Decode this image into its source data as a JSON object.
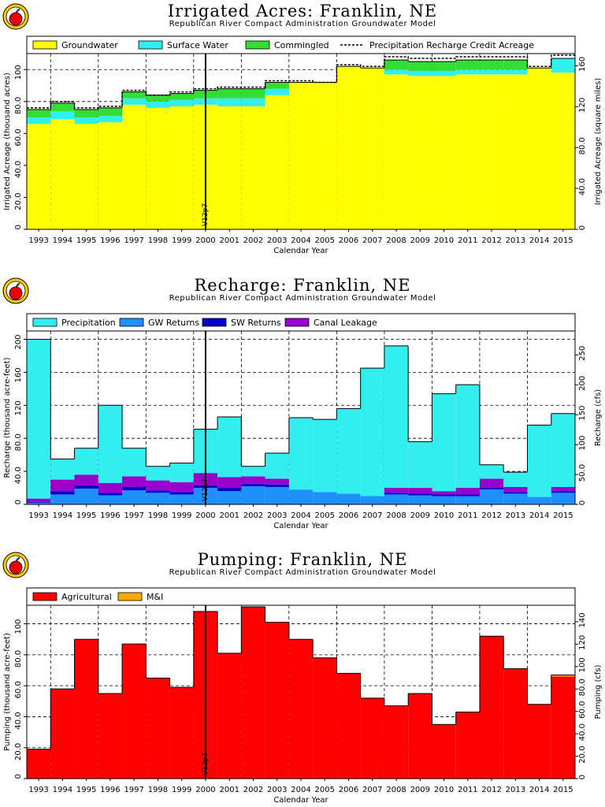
{
  "charts": [
    {
      "title": "Irrigated  Acres:  Franklin,  NE",
      "subtitle": "Republican River Compact Administration Groundwater Model",
      "xlabel": "Calendar Year",
      "ylabel": "Irrigated Acreage (thousand acres)",
      "ylabel_right": "Irrigated Acreage (square miles)",
      "marker_label": "V12p7"
    },
    {
      "title": "Recharge:  Franklin,  NE",
      "subtitle": "Republican River Compact Administration Groundwater Model",
      "xlabel": "Calendar Year",
      "ylabel": "Recharge (thousand acre-feet)",
      "ylabel_right": "Recharge (cfs)",
      "marker_label": "V12p7"
    },
    {
      "title": "Pumping:  Franklin,  NE",
      "subtitle": "Republican River Compact Administration Groundwater Model",
      "xlabel": "Calendar Year",
      "ylabel": "Pumping (thousand acre-feet)",
      "ylabel_right": "Pumping (cfs)",
      "marker_label": "V12p7"
    }
  ],
  "chart_data": [
    {
      "type": "bar",
      "stacked": true,
      "title": "Irrigated  Acres:  Franklin,  NE",
      "xlabel": "Calendar Year",
      "ylabel": "Irrigated Acreage (thousand acres)",
      "ylabel_right": "Irrigated Acreage (square miles)",
      "ylim": [
        0,
        110
      ],
      "yticks": [
        "0",
        "20.0",
        "40.0",
        "60.0",
        "80.0",
        "100"
      ],
      "ylim_right": [
        0,
        171.9
      ],
      "yticks_right": [
        "0",
        "40.0",
        "80.0",
        "120",
        "160"
      ],
      "categories": [
        "1993",
        "1994",
        "1995",
        "1996",
        "1997",
        "1998",
        "1999",
        "2000",
        "2001",
        "2002",
        "2003",
        "2004",
        "2005",
        "2006",
        "2007",
        "2008",
        "2009",
        "2010",
        "2011",
        "2012",
        "2013",
        "2014",
        "2015"
      ],
      "series": [
        {
          "name": "Groundwater",
          "color": "#ffff00",
          "values": [
            66,
            69,
            66,
            67,
            78,
            76,
            77,
            78,
            77,
            77,
            84,
            92,
            92,
            102,
            101,
            97,
            96,
            96,
            97,
            97,
            97,
            101,
            98
          ]
        },
        {
          "name": "Surface Water",
          "color": "#33eeee",
          "values": [
            4,
            5,
            4,
            4,
            4,
            4,
            4,
            4,
            5,
            5,
            4,
            0,
            0,
            0,
            0,
            3,
            3,
            3,
            3,
            3,
            3,
            0,
            9
          ]
        },
        {
          "name": "Commingled",
          "color": "#33dd33",
          "values": [
            5,
            5,
            5,
            5,
            4,
            4,
            4,
            5,
            6,
            6,
            4,
            0,
            0,
            0,
            0,
            6,
            6,
            6,
            6,
            6,
            6,
            0,
            0
          ]
        }
      ],
      "line_series": [
        {
          "name": "Precipitation  Recharge  Credit  Acreage",
          "style": "dashed",
          "values": [
            76,
            80,
            76,
            77,
            87,
            84,
            86,
            88,
            89,
            89,
            93,
            93,
            92,
            103,
            102,
            108,
            107,
            107,
            108,
            108,
            108,
            102,
            109
          ]
        }
      ],
      "marker": {
        "x": "2000",
        "label": "V12p7"
      },
      "grid": true,
      "legend": "top"
    },
    {
      "type": "bar",
      "stacked": true,
      "title": "Recharge:  Franklin,  NE",
      "xlabel": "Calendar Year",
      "ylabel": "Recharge (thousand acre-feet)",
      "ylabel_right": "Recharge (cfs)",
      "ylim": [
        0,
        210
      ],
      "yticks": [
        "0",
        "40.0",
        "80.0",
        "120",
        "160",
        "200"
      ],
      "ylim_right": [
        0,
        290
      ],
      "yticks_right": [
        "0",
        "50.0",
        "100",
        "150",
        "200",
        "250"
      ],
      "categories": [
        "1993",
        "1994",
        "1995",
        "1996",
        "1997",
        "1998",
        "1999",
        "2000",
        "2001",
        "2002",
        "2003",
        "2004",
        "2005",
        "2006",
        "2007",
        "2008",
        "2009",
        "2010",
        "2011",
        "2012",
        "2013",
        "2014",
        "2015"
      ],
      "series": [
        {
          "name": "GW Returns",
          "color": "#1e90ff",
          "values": [
            2,
            12,
            19,
            11,
            17,
            14,
            12,
            20,
            16,
            22,
            21,
            18,
            15,
            13,
            10,
            12,
            11,
            10,
            10,
            18,
            13,
            9,
            14
          ]
        },
        {
          "name": "SW Returns",
          "color": "#0000cc",
          "values": [
            1,
            4,
            4,
            3,
            4,
            3,
            3,
            3,
            4,
            3,
            3,
            0,
            0,
            0,
            0,
            2,
            2,
            2,
            2,
            2,
            2,
            0,
            2
          ]
        },
        {
          "name": "Canal Leakage",
          "color": "#9900cc",
          "values": [
            4,
            14,
            13,
            12,
            13,
            12,
            12,
            15,
            13,
            9,
            7,
            0,
            0,
            0,
            0,
            6,
            7,
            4,
            8,
            11,
            6,
            0,
            5
          ]
        },
        {
          "name": "Precipitation",
          "color": "#33eeee",
          "values": [
            193,
            25,
            32,
            94,
            34,
            17,
            23,
            53,
            73,
            12,
            31,
            87,
            88,
            103,
            155,
            172,
            56,
            118,
            125,
            17,
            18,
            87,
            89
          ]
        }
      ],
      "marker": {
        "x": "2000",
        "label": "V12p7"
      },
      "grid": true,
      "legend": "top"
    },
    {
      "type": "bar",
      "stacked": true,
      "title": "Pumping:  Franklin,  NE",
      "xlabel": "Calendar Year",
      "ylabel": "Pumping (thousand acre-feet)",
      "ylabel_right": "Pumping (cfs)",
      "ylim": [
        0,
        112
      ],
      "yticks": [
        "0",
        "20.0",
        "40.0",
        "60.0",
        "80.0",
        "100"
      ],
      "ylim_right": [
        0,
        154.7
      ],
      "yticks_right": [
        "0",
        "20.0",
        "40.0",
        "60.0",
        "80.0",
        "100",
        "120",
        "140"
      ],
      "categories": [
        "1993",
        "1994",
        "1995",
        "1996",
        "1997",
        "1998",
        "1999",
        "2000",
        "2001",
        "2002",
        "2003",
        "2004",
        "2005",
        "2006",
        "2007",
        "2008",
        "2009",
        "2010",
        "2011",
        "2012",
        "2013",
        "2014",
        "2015"
      ],
      "series": [
        {
          "name": "Agricultural",
          "color": "#ff0000",
          "values": [
            19,
            58,
            90,
            55,
            87,
            65,
            59,
            108,
            81,
            111,
            101,
            90,
            78,
            68,
            52,
            47,
            55,
            35,
            43,
            92,
            71,
            48,
            66
          ]
        },
        {
          "name": "M&I",
          "color": "#ffaa00",
          "values": [
            0,
            0,
            0,
            0,
            0,
            0,
            0,
            0,
            0,
            0,
            0,
            0,
            0,
            0,
            0,
            0,
            0,
            0,
            0,
            0,
            0,
            0,
            1
          ]
        }
      ],
      "marker": {
        "x": "2000",
        "label": "V12p7"
      },
      "grid": true,
      "legend": "top"
    }
  ]
}
